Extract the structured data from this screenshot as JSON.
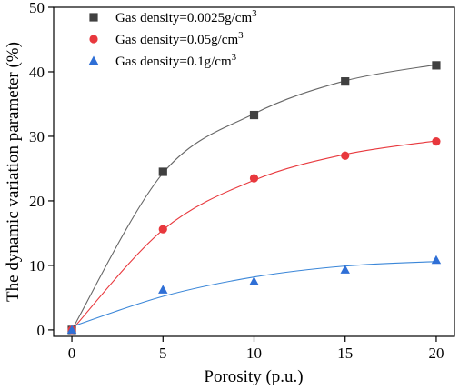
{
  "chart_data": {
    "type": "scatter",
    "xlabel": "Porosity (p.u.)",
    "ylabel": "The dynamic variation parameter (%)",
    "xlim": [
      -1,
      21
    ],
    "ylim": [
      -1,
      50
    ],
    "xticks": [
      0,
      5,
      10,
      15,
      20
    ],
    "yticks": [
      0,
      10,
      20,
      30,
      40,
      50
    ],
    "grid": false,
    "legend_position": "top-left",
    "x": [
      0,
      5,
      10,
      15,
      20
    ],
    "series": [
      {
        "name_prefix": "Gas density=0.0025g/cm",
        "name_sup": "3",
        "marker": "square",
        "color": "#404040",
        "line_color": "#666666",
        "values": [
          0,
          24.5,
          33.3,
          38.5,
          41.0
        ],
        "fit": [
          0,
          24.3,
          33.5,
          38.6,
          41.1
        ]
      },
      {
        "name_prefix": "Gas density=0.05g/cm",
        "name_sup": "3",
        "marker": "circle",
        "color": "#e8383d",
        "line_color": "#e8383d",
        "values": [
          0,
          15.6,
          23.5,
          27.0,
          29.2
        ],
        "fit": [
          0,
          15.5,
          23.2,
          27.2,
          29.3
        ]
      },
      {
        "name_prefix": "Gas density=0.1g/cm",
        "name_sup": "3",
        "marker": "triangle",
        "color": "#2f6fd6",
        "line_color": "#3a86d8",
        "values": [
          0,
          6.2,
          7.5,
          9.3,
          10.8
        ],
        "fit": [
          0.5,
          5.2,
          8.2,
          9.9,
          10.6
        ]
      }
    ]
  }
}
